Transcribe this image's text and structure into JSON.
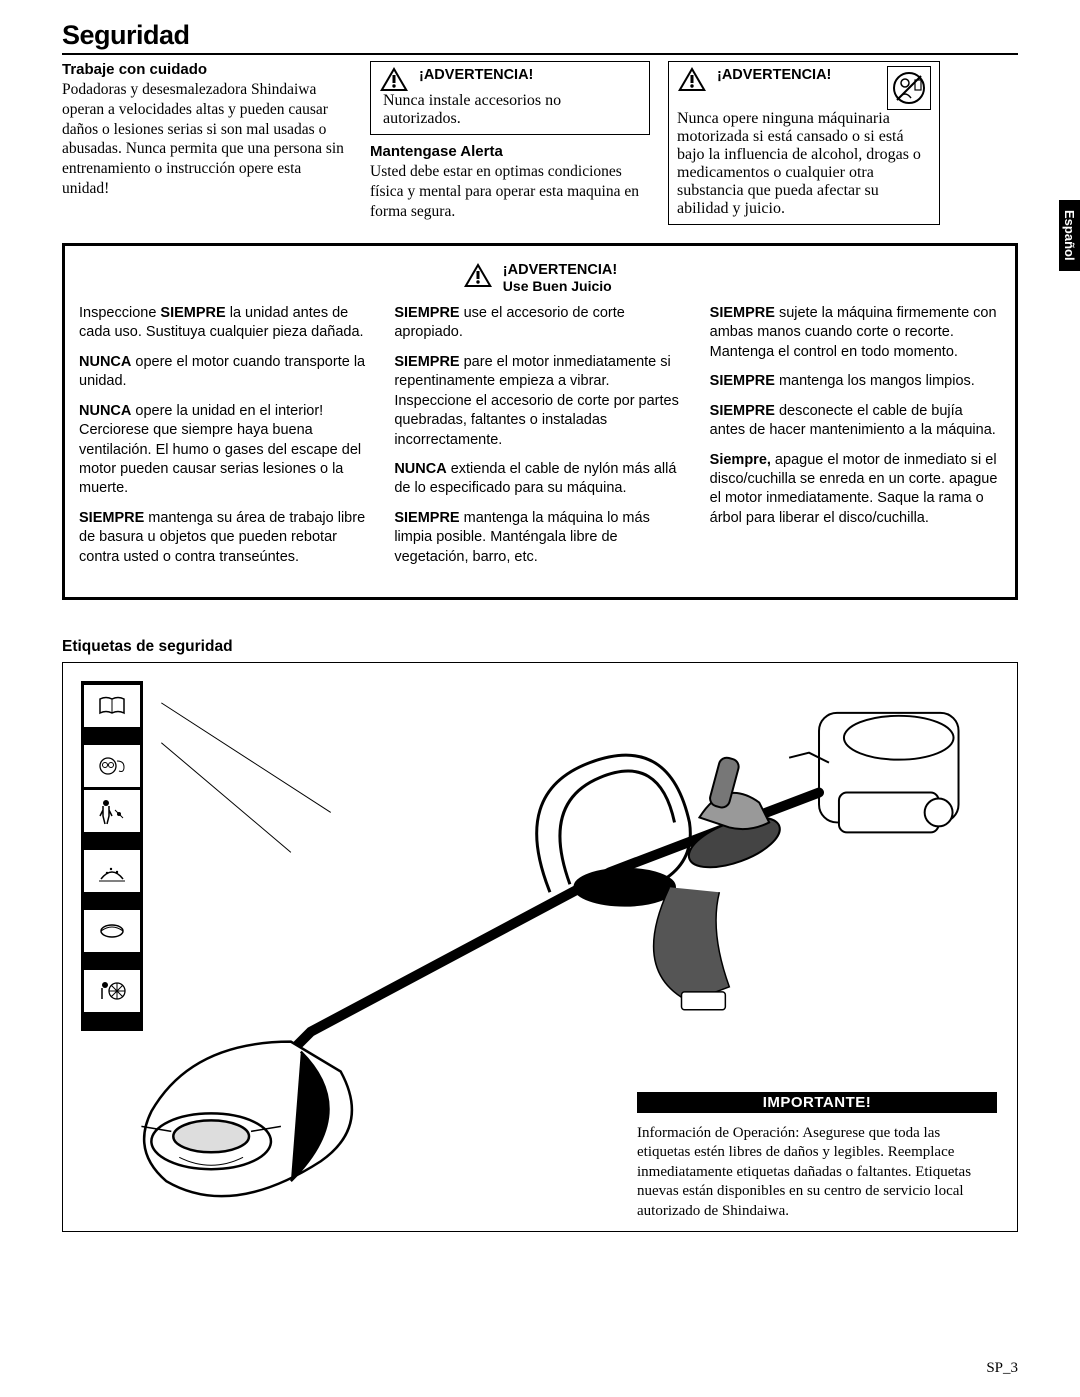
{
  "page_number": "SP_3",
  "side_tab": "Español",
  "title": "Seguridad",
  "col1": {
    "heading": "Trabaje con cuidado",
    "body": "Podadoras y desesmalezadora Shindaiwa operan a velocidades altas y pueden causar daños o lesiones serias si son mal usadas o abusadas. Nunca permita que una persona sin entrenamiento o instrucción opere esta unidad!"
  },
  "col2": {
    "warn_hdr": "¡ADVERTENCIA!",
    "warn_body": "Nunca instale accesorios no autorizados.",
    "heading": "Mantengase Alerta",
    "body": "Usted debe estar en optimas condiciones física y mental para operar esta maquina en forma segura."
  },
  "col3": {
    "warn_hdr": "¡ADVERTENCIA!",
    "warn_body": "Nunca opere ninguna máquinaria motorizada si está cansado o si está bajo la influencia de alcohol, drogas o medicamentos o cualquier otra substancia que pueda afectar su abilidad y juicio."
  },
  "big_warn": {
    "hdr": "¡ADVERTENCIA!",
    "sub": "Use Buen Juicio"
  },
  "big_cols": {
    "c1": [
      {
        "pre": "Inspeccione ",
        "b": "SIEMPRE",
        "post": " la unidad antes de cada uso. Sustituya cualquier pieza dañada."
      },
      {
        "b": "NUNCA",
        "post": " opere el motor cuando transporte la unidad."
      },
      {
        "b": "NUNCA",
        "post": " opere la unidad en el interior! Cerciorese que siempre haya buena ventilación. El humo o gases del escape del motor pueden causar serias lesiones o la muerte."
      },
      {
        "b": "SIEMPRE",
        "post": " mantenga su área de trabajo libre de basura u objetos que pueden rebotar contra usted o contra transeúntes."
      }
    ],
    "c2": [
      {
        "b": "SIEMPRE",
        "post": " use el accesorio de corte apropiado."
      },
      {
        "b": "SIEMPRE",
        "post": " pare el motor  inmediatamente si repentinamente empieza a vibrar.  Inspeccione el accesorio de corte por partes quebradas, faltantes o instaladas incorrectamente."
      },
      {
        "b": "NUNCA",
        "post": " extienda el cable de nylón más allá de lo especificado para  su máquina."
      },
      {
        "b": "SIEMPRE",
        "post": " mantenga la máquina lo más limpia posible. Manténgala libre de vegetación, barro, etc."
      }
    ],
    "c3": [
      {
        "b": "SIEMPRE",
        "post": " sujete la máquina  firmemente con ambas manos  cuando corte o recorte. Mantenga el control en todo momento."
      },
      {
        "b": "SIEMPRE",
        "post": " mantenga los  mangos limpios."
      },
      {
        "b": "SIEMPRE",
        "post": " desconecte el cable de bujía antes de hacer mantenimiento a la máquina."
      },
      {
        "b": "Siempre,",
        "post": " apague el motor de inmediato si el disco/cuchilla se enreda en un corte. apague el motor inmediatamente.  Saque la rama o árbol para liberar el disco/cuchilla."
      }
    ]
  },
  "etiquetas_heading": "Etiquetas de seguridad",
  "importante": {
    "bar": "IMPORTANTE!",
    "body": "Información de Operación:   Asegurese que toda las etiquetas estén libres de daños y legibles.  Reemplace inmediatamente  etiquetas dañadas o faltantes.  Etiquetas nuevas están disponibles en su centro de servicio local autorizado de Shindaiwa."
  }
}
